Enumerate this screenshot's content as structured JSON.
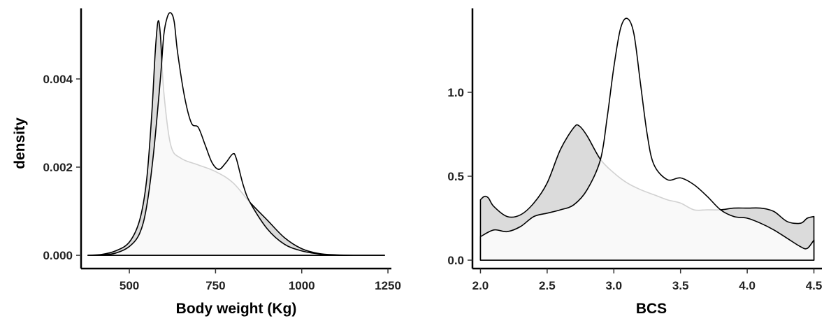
{
  "chart_data": [
    {
      "type": "area",
      "xlabel": "Body weight (Kg)",
      "ylabel": "density",
      "xlim": [
        360,
        1260
      ],
      "ylim": [
        -0.0003,
        0.0056
      ],
      "xticks": [
        500,
        750,
        1000,
        1250
      ],
      "xtick_labels": [
        "500",
        "750",
        "1000",
        "1250"
      ],
      "yticks": [
        0.0,
        0.002,
        0.004
      ],
      "ytick_labels": [
        "0.000",
        "0.002",
        "0.004"
      ],
      "grid": false,
      "legend": "none",
      "series": [
        {
          "fill": "#d3d3d3",
          "x": [
            380,
            420,
            460,
            500,
            530,
            550,
            565,
            575,
            583,
            590,
            600,
            620,
            650,
            700,
            750,
            800,
            850,
            900,
            950,
            1000,
            1050,
            1100,
            1150,
            1240
          ],
          "y": [
            0.0,
            2e-05,
            0.0001,
            0.0003,
            0.0008,
            0.0017,
            0.0032,
            0.0046,
            0.0053,
            0.005,
            0.0037,
            0.0025,
            0.0022,
            0.00205,
            0.0019,
            0.00165,
            0.0012,
            0.0008,
            0.0004,
            0.00015,
            4e-05,
            1e-05,
            0.0,
            0.0
          ]
        },
        {
          "fill": "#ffffff",
          "x": [
            380,
            420,
            460,
            500,
            530,
            550,
            570,
            590,
            600,
            610,
            620,
            630,
            640,
            660,
            680,
            700,
            720,
            740,
            760,
            780,
            800,
            810,
            830,
            850,
            900,
            950,
            1000,
            1050,
            1100,
            1150,
            1240
          ],
          "y": [
            0.0,
            1e-05,
            5e-05,
            0.0002,
            0.0005,
            0.0011,
            0.0023,
            0.004,
            0.005,
            0.0054,
            0.0055,
            0.0053,
            0.0046,
            0.0036,
            0.003,
            0.0029,
            0.0025,
            0.0021,
            0.00195,
            0.0021,
            0.0023,
            0.0022,
            0.0016,
            0.0012,
            0.0006,
            0.00025,
            0.0001,
            3e-05,
            0.0,
            0.0,
            0.0
          ]
        }
      ]
    },
    {
      "type": "area",
      "xlabel": "BCS",
      "ylabel": "",
      "xlim": [
        1.94,
        4.56
      ],
      "ylim": [
        -0.05,
        1.5
      ],
      "xticks": [
        2.0,
        2.5,
        3.0,
        3.5,
        4.0,
        4.5
      ],
      "xtick_labels": [
        "2.0",
        "2.5",
        "3.0",
        "3.5",
        "4.0",
        "4.5"
      ],
      "yticks": [
        0.0,
        0.5,
        1.0
      ],
      "ytick_labels": [
        "0.0",
        "0.5",
        "1.0"
      ],
      "grid": false,
      "legend": "none",
      "series": [
        {
          "fill": "#d3d3d3",
          "x": [
            2.0,
            2.03,
            2.06,
            2.1,
            2.2,
            2.3,
            2.4,
            2.5,
            2.6,
            2.7,
            2.74,
            2.8,
            2.9,
            3.0,
            3.1,
            3.2,
            3.3,
            3.4,
            3.5,
            3.6,
            3.7,
            3.8,
            3.9,
            4.0,
            4.1,
            4.2,
            4.3,
            4.4,
            4.45,
            4.5
          ],
          "y": [
            0.36,
            0.38,
            0.37,
            0.32,
            0.26,
            0.27,
            0.34,
            0.46,
            0.66,
            0.79,
            0.8,
            0.74,
            0.6,
            0.52,
            0.46,
            0.42,
            0.39,
            0.36,
            0.34,
            0.3,
            0.3,
            0.3,
            0.31,
            0.31,
            0.31,
            0.29,
            0.23,
            0.22,
            0.25,
            0.26
          ]
        },
        {
          "fill": "#ffffff",
          "x": [
            2.0,
            2.1,
            2.2,
            2.3,
            2.4,
            2.5,
            2.6,
            2.7,
            2.8,
            2.9,
            2.95,
            3.0,
            3.05,
            3.1,
            3.15,
            3.2,
            3.25,
            3.3,
            3.4,
            3.5,
            3.6,
            3.7,
            3.8,
            3.9,
            4.0,
            4.1,
            4.2,
            4.3,
            4.4,
            4.45,
            4.5
          ],
          "y": [
            0.14,
            0.18,
            0.17,
            0.2,
            0.26,
            0.28,
            0.3,
            0.33,
            0.42,
            0.6,
            0.85,
            1.15,
            1.38,
            1.44,
            1.35,
            1.05,
            0.75,
            0.57,
            0.48,
            0.49,
            0.45,
            0.38,
            0.3,
            0.26,
            0.25,
            0.22,
            0.18,
            0.13,
            0.08,
            0.07,
            0.12
          ]
        }
      ]
    }
  ]
}
